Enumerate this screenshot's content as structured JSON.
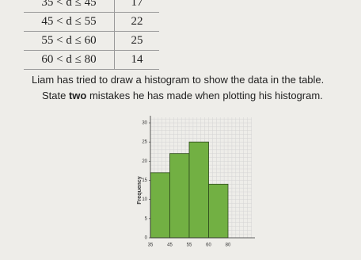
{
  "table": {
    "rows": [
      [
        "35 < d ≤ 45",
        "17"
      ],
      [
        "45 < d ≤ 55",
        "22"
      ],
      [
        "55 < d ≤ 60",
        "25"
      ],
      [
        "60 < d ≤ 80",
        "14"
      ]
    ]
  },
  "question": {
    "line1": "Liam has tried to draw a histogram to show the data in the table.",
    "line2_start": "State ",
    "line2_bold": "two",
    "line2_end": " mistakes he has made when plotting his histogram."
  },
  "histogram": {
    "type": "histogram",
    "y_label": "Frequency",
    "bin_labels": [
      "35",
      "45",
      "55",
      "60",
      "80"
    ],
    "values": [
      17,
      22,
      25,
      14
    ],
    "color": "#72b043",
    "ylim": [
      0,
      30
    ],
    "yticks": [
      0,
      5,
      10,
      15,
      20,
      25,
      30
    ]
  }
}
